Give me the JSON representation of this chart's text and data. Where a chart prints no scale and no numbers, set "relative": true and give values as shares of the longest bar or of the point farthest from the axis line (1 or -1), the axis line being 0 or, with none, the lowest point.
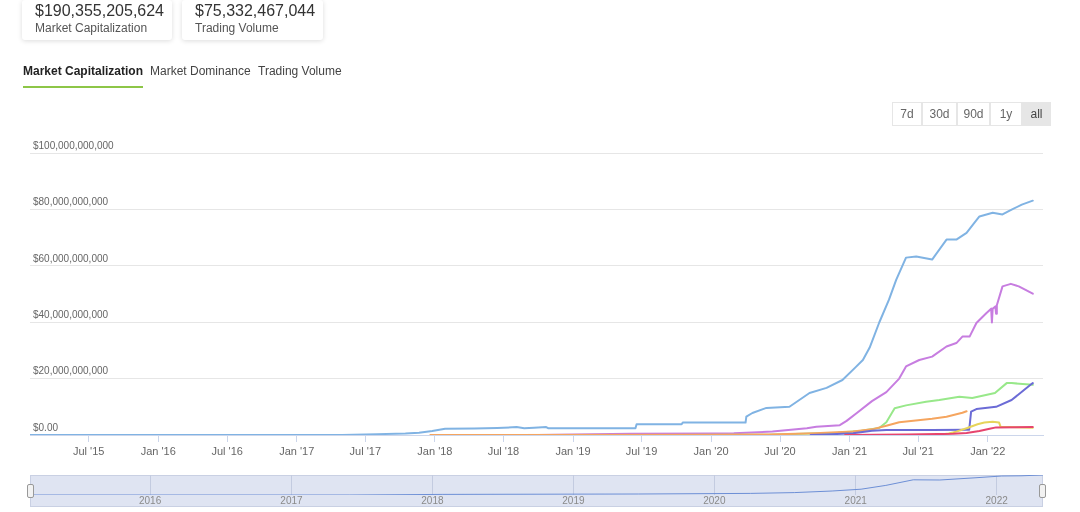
{
  "chart_data": [
    {
      "type": "line",
      "grid": "y",
      "xlim": [
        "2015-01-27",
        "2022-05-27"
      ],
      "xticks": [
        {
          "value": "2015-07-01",
          "label": "Jul '15"
        },
        {
          "value": "2016-01-01",
          "label": "Jan '16"
        },
        {
          "value": "2016-07-01",
          "label": "Jul '16"
        },
        {
          "value": "2017-01-01",
          "label": "Jan '17"
        },
        {
          "value": "2017-07-01",
          "label": "Jul '17"
        },
        {
          "value": "2018-01-01",
          "label": "Jan '18"
        },
        {
          "value": "2018-07-01",
          "label": "Jul '18"
        },
        {
          "value": "2019-01-01",
          "label": "Jan '19"
        },
        {
          "value": "2019-07-01",
          "label": "Jul '19"
        },
        {
          "value": "2020-01-01",
          "label": "Jan '20"
        },
        {
          "value": "2020-07-01",
          "label": "Jul '20"
        },
        {
          "value": "2021-01-01",
          "label": "Jan '21"
        },
        {
          "value": "2021-07-01",
          "label": "Jul '21"
        },
        {
          "value": "2022-01-01",
          "label": "Jan '22"
        }
      ],
      "ylim": [
        0,
        100000000000
      ],
      "yticks": [
        {
          "value": 0,
          "label": "$0.00"
        },
        {
          "value": 20000000000,
          "label": "$20,000,000,000"
        },
        {
          "value": 40000000000,
          "label": "$40,000,000,000"
        },
        {
          "value": 60000000000,
          "label": "$60,000,000,000"
        },
        {
          "value": 80000000000,
          "label": "$80,000,000,000"
        },
        {
          "value": 100000000000,
          "label": "$100,000,000,000"
        }
      ],
      "annotations": [
        "$190,355,205,624",
        "Market Capitalization",
        "$75,332,467,044",
        "Trading Volume",
        "Market Capitalization",
        "Market Dominance",
        "Trading Volume",
        "7d",
        "30d",
        "90d",
        "1y",
        "all"
      ],
      "series": [
        {
          "color": "#80b3e3",
          "x": [
            "2015-01-27",
            "2016-06-01",
            "2017-05-01",
            "2017-08-01",
            "2017-10-15",
            "2017-11-20",
            "2017-12-25",
            "2018-01-28",
            "2018-04-15",
            "2018-06-15",
            "2018-08-05",
            "2018-08-25",
            "2018-09-20",
            "2018-10-22",
            "2018-10-27",
            "2019-06-15",
            "2019-06-18",
            "2019-10-15",
            "2019-10-18",
            "2020-04-01",
            "2020-04-03",
            "2020-04-19",
            "2020-05-26",
            "2020-07-26",
            "2020-09-17",
            "2020-11-01",
            "2020-12-13",
            "2021-01-15",
            "2021-02-05",
            "2021-02-23",
            "2021-03-20",
            "2021-04-15",
            "2021-05-04",
            "2021-05-30",
            "2021-06-26",
            "2021-08-07",
            "2021-09-14",
            "2021-10-10",
            "2021-11-06",
            "2021-11-27",
            "2021-12-10",
            "2022-01-14",
            "2022-02-09",
            "2022-03-05",
            "2022-04-01",
            "2022-04-30"
          ],
          "values": [
            0,
            0,
            0,
            300000000,
            500000000,
            800000000,
            1400000000,
            2200000000,
            2300000000,
            2500000000,
            2800000000,
            2400000000,
            2600000000,
            2800000000,
            2400000000,
            2400000000,
            3800000000,
            3800000000,
            4400000000,
            4400000000,
            6500000000,
            7800000000,
            9600000000,
            10000000000,
            14900000000,
            16700000000,
            19500000000,
            23800000000,
            26600000000,
            31000000000,
            39800000000,
            48000000000,
            55000000000,
            62900000000,
            63300000000,
            62200000000,
            69300000000,
            69300000000,
            71700000000,
            75300000000,
            77500000000,
            78800000000,
            78200000000,
            79900000000,
            81700000000,
            83100000000
          ]
        },
        {
          "color": "#c77de0",
          "x": [
            "2018-10-01",
            "2019-06-01",
            "2019-12-31",
            "2020-03-01",
            "2020-06-11",
            "2020-09-10",
            "2020-10-05",
            "2020-12-06",
            "2020-12-24",
            "2021-01-20",
            "2021-03-01",
            "2021-04-08",
            "2021-05-12",
            "2021-05-30",
            "2021-07-04",
            "2021-08-07",
            "2021-09-14",
            "2021-10-10",
            "2021-10-26",
            "2021-11-14",
            "2021-12-02",
            "2021-12-28",
            "2022-01-10",
            "2022-01-12",
            "2022-01-14",
            "2022-01-21",
            "2022-01-23",
            "2022-01-25",
            "2022-02-09",
            "2022-03-03",
            "2022-03-24",
            "2022-04-30"
          ],
          "values": [
            0,
            400000000,
            500000000,
            600000000,
            1200000000,
            2400000000,
            2900000000,
            3500000000,
            5000000000,
            7800000000,
            12000000000,
            15200000000,
            20000000000,
            24300000000,
            26600000000,
            27800000000,
            31400000000,
            32600000000,
            34900000000,
            34900000000,
            39700000000,
            43200000000,
            44800000000,
            39900000000,
            44800000000,
            45600000000,
            43000000000,
            46000000000,
            52700000000,
            53600000000,
            52700000000,
            50100000000
          ]
        },
        {
          "color": "#98e88a",
          "x": [
            "2019-09-15",
            "2020-06-01",
            "2020-12-01",
            "2021-02-01",
            "2021-03-20",
            "2021-04-08",
            "2021-04-30",
            "2021-05-30",
            "2021-07-22",
            "2021-08-26",
            "2021-10-18",
            "2021-11-21",
            "2022-01-20",
            "2022-02-20",
            "2022-03-05",
            "2022-04-30"
          ],
          "values": [
            0,
            100000000,
            800000000,
            1500000000,
            2500000000,
            4500000000,
            9500000000,
            10500000000,
            11800000000,
            12400000000,
            13600000000,
            13100000000,
            14900000000,
            18400000000,
            18400000000,
            17800000000
          ]
        },
        {
          "color": "#f5a55f",
          "x": [
            "2017-12-20",
            "2019-12-31",
            "2020-06-01",
            "2020-10-01",
            "2021-01-10",
            "2021-03-01",
            "2021-04-08",
            "2021-05-12",
            "2021-08-07",
            "2021-09-14",
            "2021-10-26",
            "2021-11-06"
          ],
          "values": [
            0,
            100000000,
            200000000,
            600000000,
            1200000000,
            2000000000,
            3300000000,
            4500000000,
            5800000000,
            6500000000,
            7900000000,
            8400000000
          ]
        },
        {
          "color": "#6b6bd6",
          "x": [
            "2020-09-20",
            "2020-11-01",
            "2021-01-10",
            "2021-03-01",
            "2021-04-08",
            "2021-05-12",
            "2021-08-07",
            "2021-11-06",
            "2021-11-13",
            "2021-11-18",
            "2021-12-02",
            "2022-01-23",
            "2022-03-05",
            "2022-04-24",
            "2022-04-30"
          ],
          "values": [
            0,
            200000000,
            600000000,
            1500000000,
            1800000000,
            1800000000,
            1800000000,
            1900000000,
            1900000000,
            8300000000,
            9200000000,
            10000000000,
            12400000000,
            17800000000,
            18400000000
          ]
        },
        {
          "color": "#e6d45a",
          "x": [
            "2021-08-20",
            "2021-09-20",
            "2021-10-10",
            "2021-11-06",
            "2021-12-05",
            "2021-12-23",
            "2022-01-14",
            "2022-01-31",
            "2022-02-04",
            "2022-04-30"
          ],
          "values": [
            0,
            500000000,
            1200000000,
            2400000000,
            3800000000,
            4400000000,
            4700000000,
            4400000000,
            2900000000,
            2600000000
          ]
        },
        {
          "color": "#e6456e",
          "x": [
            "2020-12-20",
            "2021-06-01",
            "2021-10-01",
            "2021-11-06",
            "2021-12-10",
            "2022-01-06",
            "2022-01-23",
            "2022-04-30"
          ],
          "values": [
            0,
            200000000,
            400000000,
            700000000,
            1400000000,
            2200000000,
            2700000000,
            2800000000
          ]
        }
      ]
    },
    {
      "type": "line",
      "relative": true,
      "grid": "x",
      "xlim": [
        "2015-02-24",
        "2022-05-01"
      ],
      "xticks": [
        {
          "value": "2016-01-01",
          "label": "2016"
        },
        {
          "value": "2017-01-01",
          "label": "2017"
        },
        {
          "value": "2018-01-01",
          "label": "2018"
        },
        {
          "value": "2019-01-01",
          "label": "2019"
        },
        {
          "value": "2020-01-01",
          "label": "2020"
        },
        {
          "value": "2021-01-01",
          "label": "2021"
        },
        {
          "value": "2022-01-01",
          "label": "2022"
        }
      ],
      "series": [
        {
          "color": "#6d8fd6",
          "x": [
            "2015-02-24",
            "2017-06-01",
            "2018-01-28",
            "2019-06-18",
            "2020-04-03",
            "2020-07-26",
            "2020-11-01",
            "2021-01-15",
            "2021-03-20",
            "2021-05-30",
            "2021-08-07",
            "2021-11-06",
            "2022-01-14",
            "2022-03-05",
            "2022-04-30"
          ],
          "values": [
            0,
            0,
            0.03,
            0.05,
            0.08,
            0.12,
            0.2,
            0.29,
            0.48,
            0.76,
            0.75,
            0.86,
            0.95,
            0.96,
            1
          ]
        }
      ]
    }
  ]
}
